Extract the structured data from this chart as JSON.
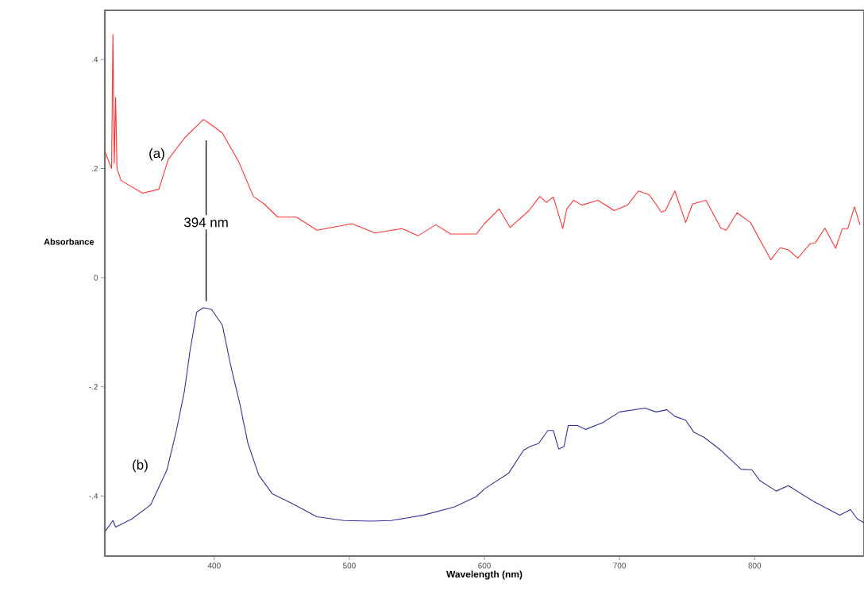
{
  "chart_data": {
    "type": "line",
    "xlabel": "Wavelength (nm)",
    "ylabel": "Absorbance",
    "xlim": [
      319,
      881
    ],
    "ylim": [
      -0.51,
      0.49
    ],
    "xticks": [
      400,
      500,
      600,
      700,
      800
    ],
    "yticks": [
      {
        "value": -0.4,
        "label": "-.4"
      },
      {
        "value": -0.2,
        "label": "-.2"
      },
      0,
      {
        "value": 0.2,
        "label": ".2"
      },
      {
        "value": 0.4,
        "label": ".4"
      }
    ],
    "ref_lines": [
      {
        "axis": "x",
        "value": 394,
        "label": "394 nm",
        "color": "#000000"
      }
    ],
    "series": [
      {
        "name": "(a)",
        "color": "#ff3333",
        "x": [
          319.4,
          324,
          325,
          326,
          327,
          328,
          331,
          347,
          359,
          366,
          378,
          392,
          398,
          406,
          418,
          429,
          437,
          447,
          461,
          476,
          502,
          519,
          539,
          551,
          564,
          575,
          594,
          600,
          611,
          619,
          633,
          641,
          646,
          651,
          658,
          661,
          666,
          672,
          684,
          696,
          706,
          714,
          722,
          731,
          734,
          741,
          749,
          754,
          764,
          775,
          779,
          787,
          797,
          812,
          819,
          825,
          832,
          841,
          845,
          852,
          860,
          865,
          869,
          874,
          878
        ],
        "values": [
          0.229,
          0.2,
          0.446,
          0.21,
          0.33,
          0.2,
          0.178,
          0.155,
          0.162,
          0.217,
          0.256,
          0.29,
          0.28,
          0.265,
          0.213,
          0.149,
          0.135,
          0.111,
          0.111,
          0.087,
          0.099,
          0.082,
          0.09,
          0.077,
          0.097,
          0.08,
          0.08,
          0.099,
          0.126,
          0.092,
          0.123,
          0.149,
          0.138,
          0.148,
          0.09,
          0.126,
          0.142,
          0.133,
          0.142,
          0.123,
          0.133,
          0.159,
          0.152,
          0.12,
          0.123,
          0.159,
          0.101,
          0.135,
          0.142,
          0.091,
          0.087,
          0.119,
          0.101,
          0.033,
          0.055,
          0.051,
          0.036,
          0.062,
          0.064,
          0.091,
          0.054,
          0.09,
          0.09,
          0.13,
          0.097
        ]
      },
      {
        "name": "(b)",
        "color": "#333399",
        "x": [
          319.4,
          325,
          327,
          339,
          353,
          365,
          372,
          378,
          382,
          387,
          392,
          398,
          406,
          412,
          419,
          425,
          433,
          443,
          457,
          476,
          496,
          516,
          531,
          555,
          578,
          594,
          600,
          618,
          629,
          634,
          640,
          647,
          651,
          655,
          659,
          662,
          669,
          675,
          688,
          700,
          719,
          727,
          735,
          741,
          749,
          755,
          763,
          775,
          790,
          798,
          804,
          816,
          825,
          843,
          863,
          871,
          876,
          881
        ],
        "values": [
          -0.464,
          -0.445,
          -0.457,
          -0.442,
          -0.416,
          -0.352,
          -0.28,
          -0.207,
          -0.135,
          -0.063,
          -0.055,
          -0.058,
          -0.087,
          -0.159,
          -0.232,
          -0.304,
          -0.362,
          -0.396,
          -0.413,
          -0.438,
          -0.445,
          -0.446,
          -0.445,
          -0.435,
          -0.42,
          -0.401,
          -0.387,
          -0.358,
          -0.316,
          -0.309,
          -0.304,
          -0.28,
          -0.28,
          -0.314,
          -0.309,
          -0.271,
          -0.271,
          -0.278,
          -0.265,
          -0.246,
          -0.239,
          -0.246,
          -0.242,
          -0.254,
          -0.261,
          -0.283,
          -0.293,
          -0.316,
          -0.351,
          -0.352,
          -0.372,
          -0.391,
          -0.381,
          -0.409,
          -0.435,
          -0.425,
          -0.442,
          -0.449
        ]
      }
    ]
  }
}
